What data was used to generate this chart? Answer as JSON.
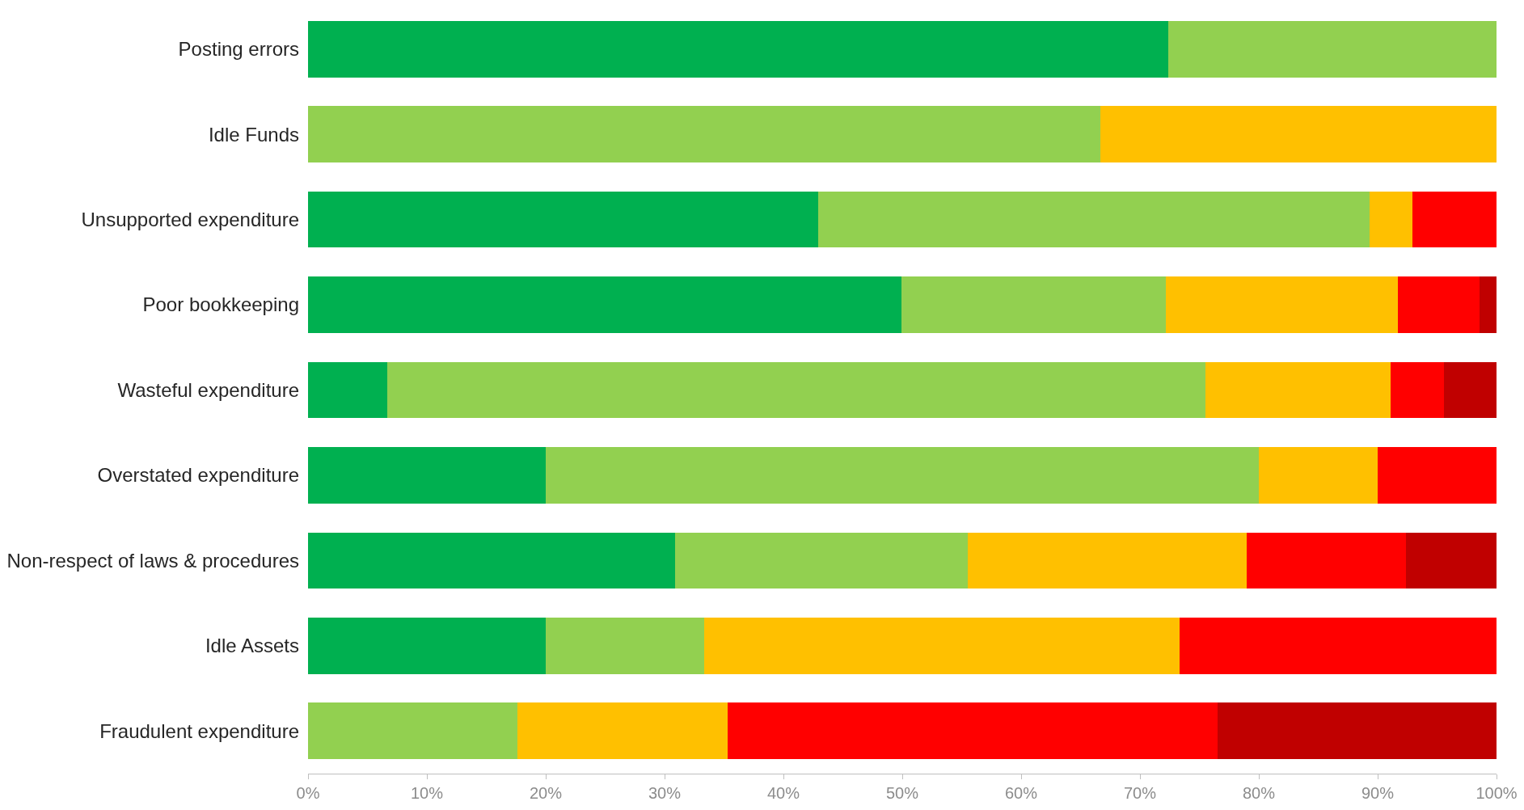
{
  "chart_data": {
    "type": "bar",
    "orientation": "horizontal",
    "stacked": true,
    "categories": [
      "Posting errors",
      "Idle Funds",
      "Unsupported expenditure",
      "Poor bookkeeping",
      "Wasteful expenditure",
      "Overstated expenditure",
      "Non-respect of laws & procedures",
      "Idle Assets",
      "Fraudulent expenditure"
    ],
    "series": [
      {
        "color": "#00b050",
        "values": [
          72.4,
          null,
          42.9,
          49.9,
          6.7,
          20,
          30.9,
          20,
          null
        ]
      },
      {
        "color": "#92d050",
        "values": [
          27.6,
          66.7,
          46.4,
          22.3,
          68.8,
          60,
          24.6,
          13.3,
          17.6
        ]
      },
      {
        "color": "#ffc000",
        "values": [
          null,
          33.3,
          3.6,
          19.5,
          15.6,
          10,
          23.5,
          40,
          17.7
        ]
      },
      {
        "color": "#ff0000",
        "values": [
          null,
          null,
          7.1,
          6.9,
          4.5,
          10,
          13.4,
          26.7,
          41.2
        ]
      },
      {
        "color": "#c00000",
        "values": [
          null,
          null,
          null,
          1.4,
          4.4,
          null,
          7.6,
          null,
          23.5
        ]
      }
    ],
    "xlim": [
      0,
      100
    ],
    "xticks": [
      {
        "value": 0,
        "label": "0%"
      },
      {
        "value": 10,
        "label": "10%"
      },
      {
        "value": 20,
        "label": "20%"
      },
      {
        "value": 30,
        "label": "30%"
      },
      {
        "value": 40,
        "label": "40%"
      },
      {
        "value": 50,
        "label": "50%"
      },
      {
        "value": 60,
        "label": "60%"
      },
      {
        "value": 70,
        "label": "70%"
      },
      {
        "value": 80,
        "label": "80%"
      },
      {
        "value": 90,
        "label": "90%"
      },
      {
        "value": 100,
        "label": "100%"
      }
    ]
  }
}
